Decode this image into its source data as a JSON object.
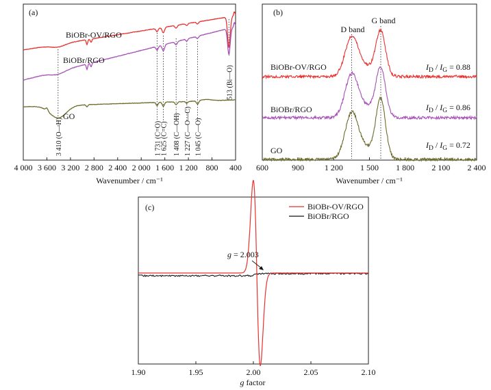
{
  "colors": {
    "red": "#e8302e",
    "purple": "#a64fb6",
    "olive": "#6b6b2a",
    "black": "#111111"
  },
  "chart_data": [
    {
      "type": "line",
      "panel_label": "(a)",
      "xlabel": "Wavenumber / cm⁻¹",
      "xlim": [
        4000,
        400
      ],
      "x_ticks": [
        4000,
        3600,
        3200,
        2800,
        2400,
        2000,
        1600,
        1200,
        800,
        400
      ],
      "x_tick_labels": [
        "4 000",
        "3 600",
        "3 200",
        "2 800",
        "2 400",
        "2 000",
        "1 600",
        "1 200",
        "800",
        "400"
      ],
      "series": [
        {
          "name": "BiOBr-OV/RGO",
          "color": "#e8302e"
        },
        {
          "name": "BiOBr/RGO",
          "color": "#a64fb6"
        },
        {
          "name": "GO",
          "color": "#6b6b2a"
        }
      ],
      "annotations": [
        {
          "x": 3410,
          "text": "3 410 (O—H)"
        },
        {
          "x": 1731,
          "text": "1 731 (C=O)"
        },
        {
          "x": 1625,
          "text": "1 625 (C=C)"
        },
        {
          "x": 1408,
          "text": "1 408 (C—OH)"
        },
        {
          "x": 1227,
          "text": "1 227 (C—O—C)"
        },
        {
          "x": 1045,
          "text": "1 045 (C—O)"
        },
        {
          "x": 513,
          "text": "513 (Bi—O)"
        }
      ]
    },
    {
      "type": "line",
      "panel_label": "(b)",
      "xlabel": "Wavenumber / cm⁻¹",
      "xlim": [
        600,
        2400
      ],
      "x_ticks": [
        600,
        900,
        1200,
        1500,
        1800,
        2100,
        2400
      ],
      "x_tick_labels": [
        "600",
        "900",
        "1 200",
        "1 500",
        "1 800",
        "2 100",
        "2 400"
      ],
      "band_labels": [
        {
          "x": 1350,
          "text": "D band"
        },
        {
          "x": 1595,
          "text": "G band"
        }
      ],
      "series": [
        {
          "name": "BiOBr-OV/RGO",
          "color": "#e8302e",
          "ratio_label": "I",
          "ratio_value": " = 0.88",
          "id_ig": 0.88
        },
        {
          "name": "BiOBr/RGO",
          "color": "#a64fb6",
          "ratio_label": "I",
          "ratio_value": " = 0.86",
          "id_ig": 0.86
        },
        {
          "name": "GO",
          "color": "#6b6b2a",
          "ratio_label": "I",
          "ratio_value": " = 0.72",
          "id_ig": 0.72
        }
      ],
      "ratio_sub_d": "D",
      "ratio_sub_g": "G",
      "ratio_slash": " / "
    },
    {
      "type": "line",
      "panel_label": "(c)",
      "xlabel_italic": "g",
      "xlabel_rest": " factor",
      "xlim": [
        1.9,
        2.1
      ],
      "x_ticks": [
        1.9,
        1.95,
        2.0,
        2.05,
        2.1
      ],
      "x_tick_labels": [
        "1.90",
        "1.95",
        "2.00",
        "2.05",
        "2.10"
      ],
      "series": [
        {
          "name": "BiOBr-OV/RGO",
          "color": "#e8302e"
        },
        {
          "name": "BiOBr/RGO",
          "color": "#111111"
        }
      ],
      "annotation": {
        "g_italic": "g",
        "rest": " = 2.003",
        "x": 2.003
      },
      "legend_position": "top-right"
    }
  ]
}
